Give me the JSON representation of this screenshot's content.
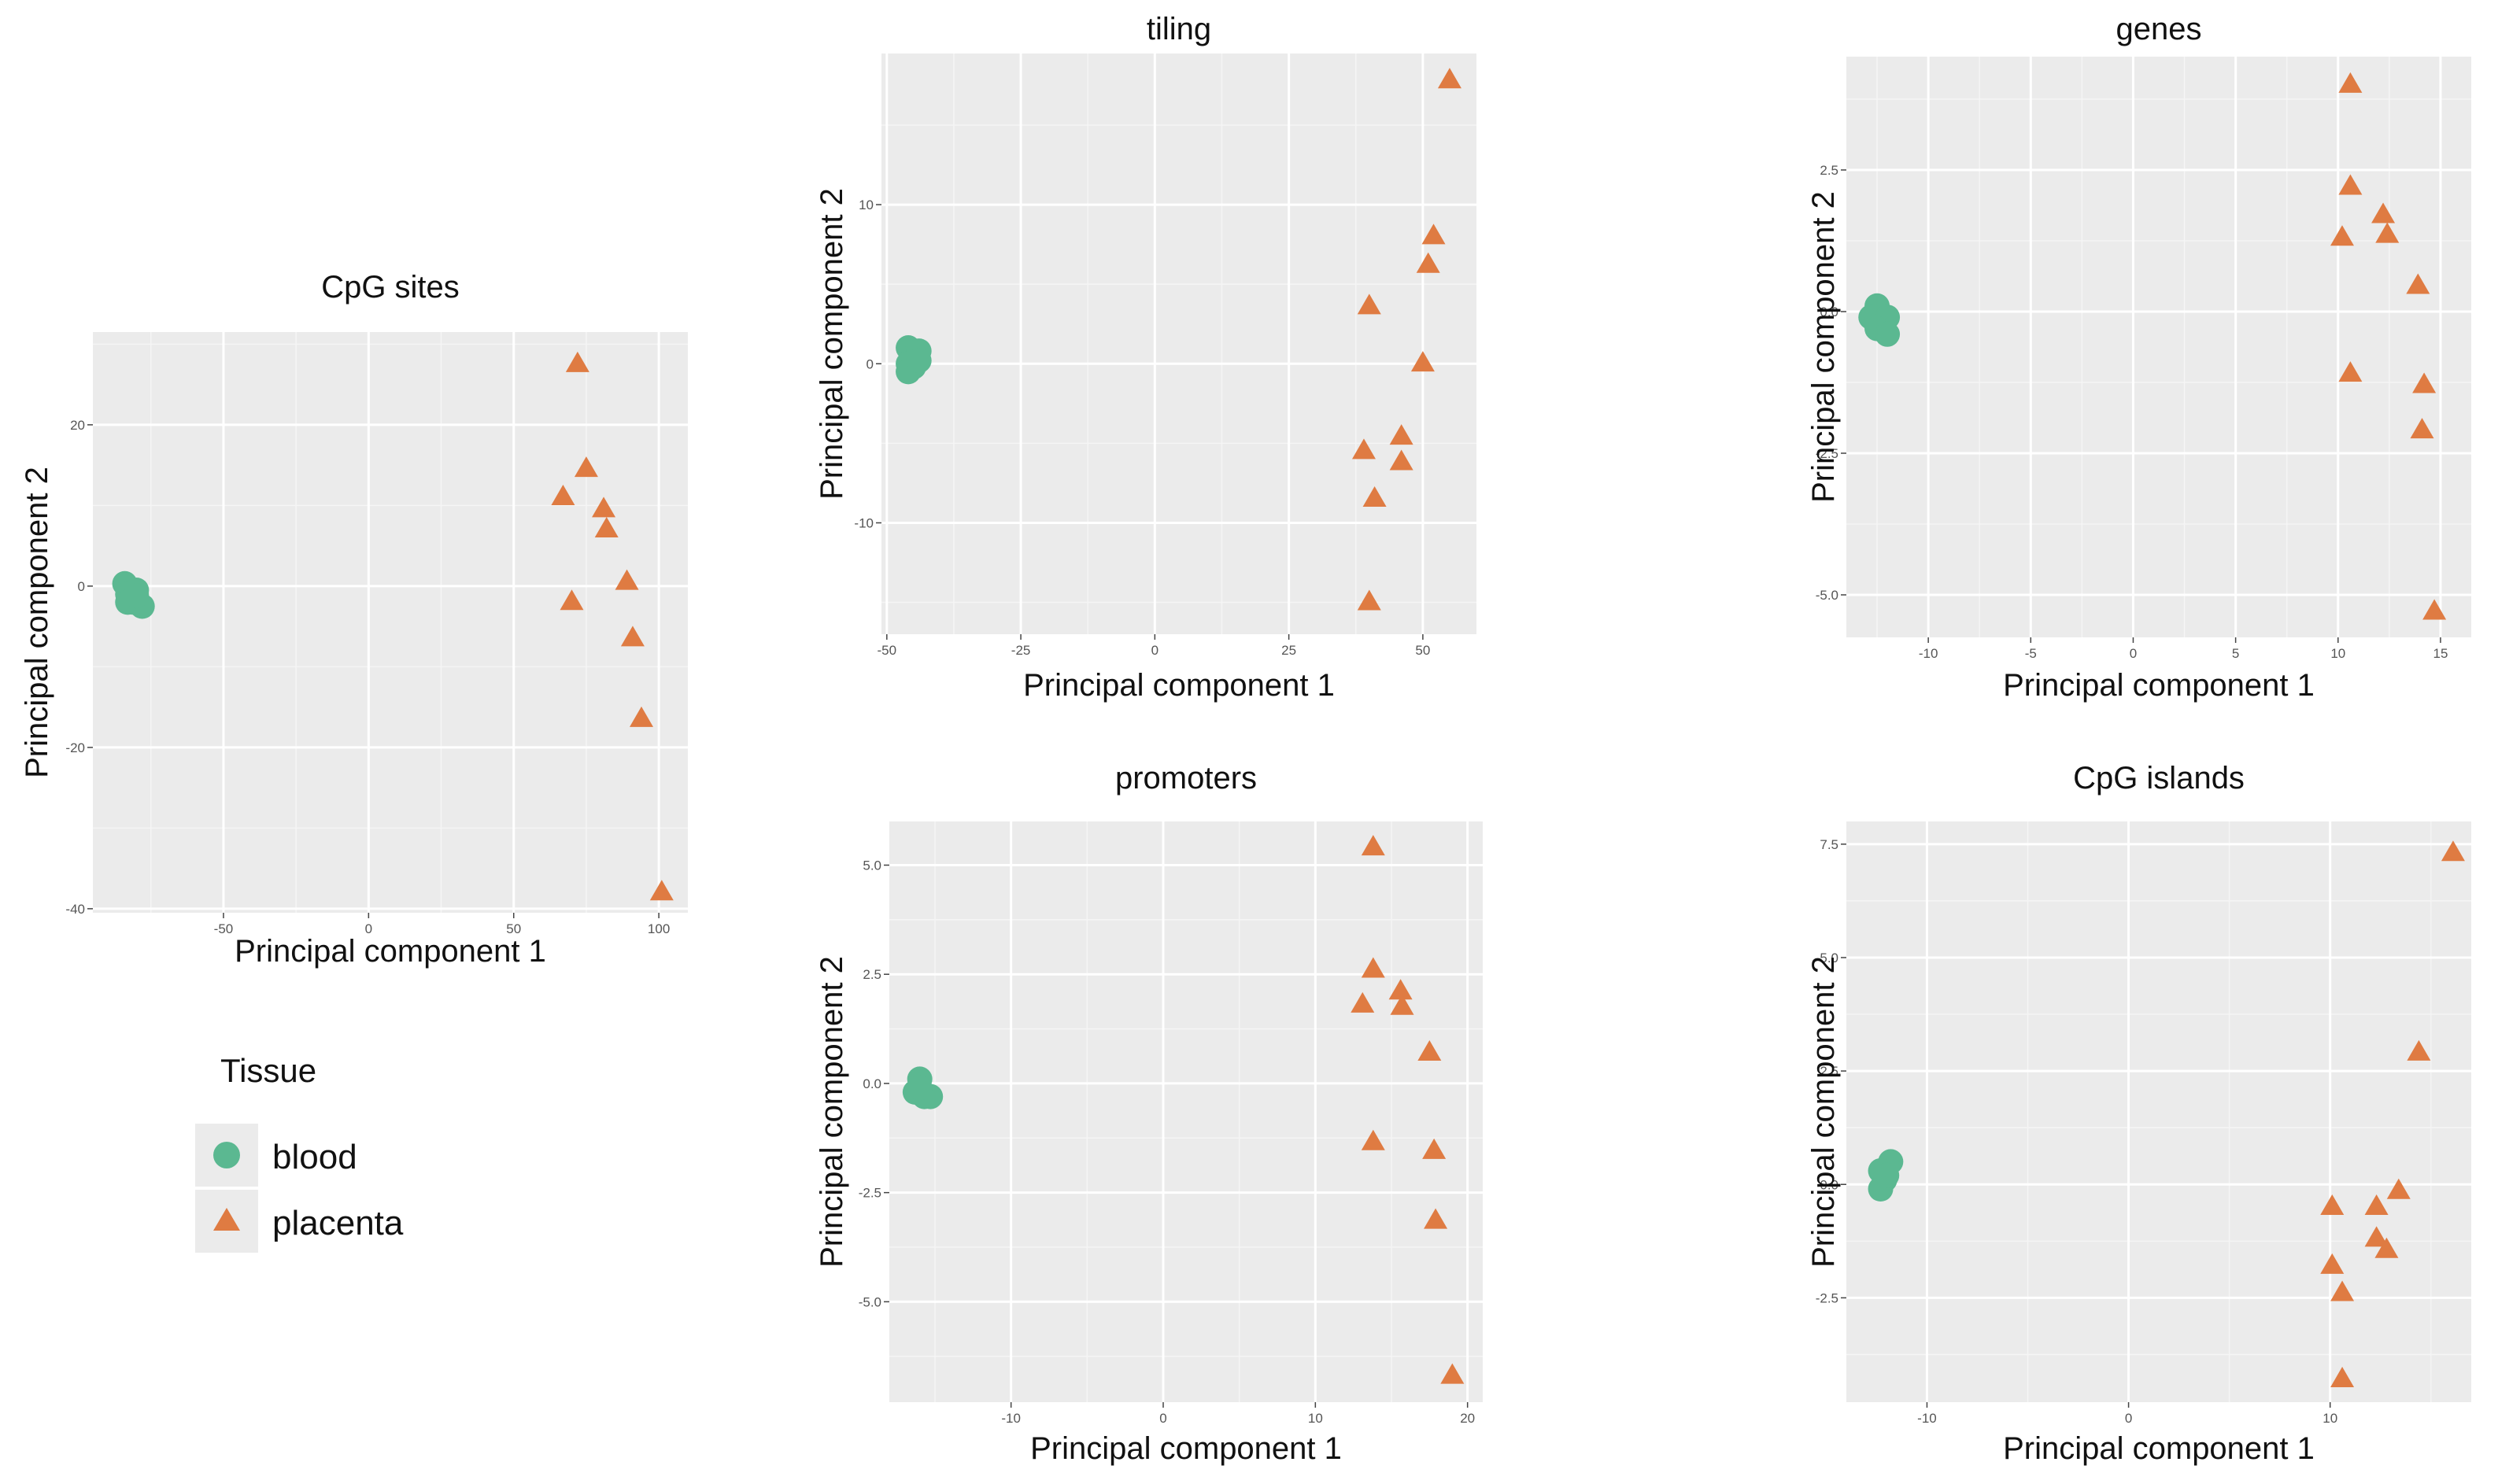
{
  "legend": {
    "title": "Tissue",
    "entries": [
      {
        "label": "blood",
        "color": "#5BB891",
        "shape": "circle"
      },
      {
        "label": "placenta",
        "color": "#DF7B42",
        "shape": "triangle"
      }
    ]
  },
  "chart_data": [
    {
      "id": "cpg-sites",
      "type": "scatter",
      "title": "CpG sites",
      "xlabel": "Principal component 1",
      "ylabel": "Principal component 2",
      "xlim": [
        -95,
        110
      ],
      "ylim": [
        -40.5,
        31.5
      ],
      "xticks": [
        -50,
        0,
        50,
        100
      ],
      "xticklabels": [
        "-50",
        "0",
        "50",
        "100"
      ],
      "yticks": [
        -40,
        -20,
        0,
        20
      ],
      "yticklabels": [
        "-40",
        "-20",
        "0",
        "20"
      ],
      "series": [
        {
          "name": "blood",
          "points": [
            [
              -84,
              0.3
            ],
            [
              -83,
              -1
            ],
            [
              -82,
              -1.5
            ],
            [
              -80,
              -0.5
            ],
            [
              -81,
              -2
            ],
            [
              -78,
              -2.5
            ],
            [
              -83,
              -2
            ],
            [
              -80,
              -1.2
            ]
          ]
        },
        {
          "name": "placenta",
          "points": [
            [
              72,
              27.5
            ],
            [
              75,
              14.5
            ],
            [
              67,
              11
            ],
            [
              81,
              9.5
            ],
            [
              82,
              7
            ],
            [
              70,
              -2
            ],
            [
              89,
              0.5
            ],
            [
              91,
              -6.5
            ],
            [
              94,
              -16.5
            ],
            [
              101,
              -38
            ]
          ]
        }
      ]
    },
    {
      "id": "tiling",
      "type": "scatter",
      "title": "tiling",
      "xlabel": "Principal component 1",
      "ylabel": "Principal component 2",
      "xlim": [
        -51,
        60
      ],
      "ylim": [
        -17,
        19.5
      ],
      "xticks": [
        -50,
        -25,
        0,
        25,
        50
      ],
      "xticklabels": [
        "-50",
        "-25",
        "0",
        "25",
        "50"
      ],
      "yticks": [
        -10,
        0,
        10
      ],
      "yticklabels": [
        "-10",
        "0",
        "10"
      ],
      "series": [
        {
          "name": "blood",
          "points": [
            [
              -46,
              1
            ],
            [
              -45,
              0.5
            ],
            [
              -46,
              0
            ],
            [
              -44,
              0.8
            ],
            [
              -45,
              -0.2
            ],
            [
              -46,
              -0.5
            ],
            [
              -44,
              0.2
            ]
          ]
        },
        {
          "name": "placenta",
          "points": [
            [
              55,
              17.8
            ],
            [
              52,
              8
            ],
            [
              51,
              6.2
            ],
            [
              40,
              3.6
            ],
            [
              50,
              0
            ],
            [
              46,
              -4.6
            ],
            [
              39,
              -5.5
            ],
            [
              46,
              -6.2
            ],
            [
              41,
              -8.5
            ],
            [
              40,
              -15
            ]
          ]
        }
      ]
    },
    {
      "id": "genes",
      "type": "scatter",
      "title": "genes",
      "xlabel": "Principal component 1",
      "ylabel": "Principal component 2",
      "xlim": [
        -14,
        16.5
      ],
      "ylim": [
        -5.75,
        4.5
      ],
      "xticks": [
        -10,
        -5,
        0,
        5,
        10,
        15
      ],
      "xticklabels": [
        "-10",
        "-5",
        "0",
        "5",
        "10",
        "15"
      ],
      "yticks": [
        -5,
        -2.5,
        0,
        2.5
      ],
      "yticklabels": [
        "-5.0",
        "-2.5",
        "0.0",
        "2.5"
      ],
      "series": [
        {
          "name": "blood",
          "points": [
            [
              -12.5,
              0.1
            ],
            [
              -12.8,
              -0.1
            ],
            [
              -12.3,
              -0.2
            ],
            [
              -12,
              -0.1
            ],
            [
              -12.5,
              -0.3
            ],
            [
              -12,
              -0.4
            ]
          ]
        },
        {
          "name": "placenta",
          "points": [
            [
              10.6,
              4
            ],
            [
              10.6,
              2.2
            ],
            [
              12.2,
              1.7
            ],
            [
              10.2,
              1.3
            ],
            [
              12.4,
              1.35
            ],
            [
              13.9,
              0.45
            ],
            [
              10.6,
              -1.1
            ],
            [
              14.2,
              -1.3
            ],
            [
              14.1,
              -2.1
            ],
            [
              14.7,
              -5.3
            ]
          ]
        }
      ]
    },
    {
      "id": "promoters",
      "type": "scatter",
      "title": "promoters",
      "xlabel": "Principal component 1",
      "ylabel": "Principal component 2",
      "xlim": [
        -18,
        21
      ],
      "ylim": [
        -7.3,
        6
      ],
      "xticks": [
        -10,
        0,
        10,
        20
      ],
      "xticklabels": [
        "-10",
        "0",
        "10",
        "20"
      ],
      "yticks": [
        -5,
        -2.5,
        0,
        2.5,
        5
      ],
      "yticklabels": [
        "-5.0",
        "-2.5",
        "0.0",
        "2.5",
        "5.0"
      ],
      "series": [
        {
          "name": "blood",
          "points": [
            [
              -16,
              0.1
            ],
            [
              -16.3,
              -0.2
            ],
            [
              -15.7,
              -0.3
            ],
            [
              -15.3,
              -0.3
            ],
            [
              -16,
              -0.1
            ]
          ]
        },
        {
          "name": "placenta",
          "points": [
            [
              13.8,
              5.4
            ],
            [
              13.8,
              2.6
            ],
            [
              15.6,
              2.1
            ],
            [
              13.1,
              1.8
            ],
            [
              15.7,
              1.75
            ],
            [
              17.5,
              0.7
            ],
            [
              13.8,
              -1.35
            ],
            [
              17.8,
              -1.55
            ],
            [
              17.9,
              -3.15
            ],
            [
              19,
              -6.7
            ]
          ]
        }
      ]
    },
    {
      "id": "cpg-islands",
      "type": "scatter",
      "title": "CpG islands",
      "xlabel": "Principal component 1",
      "ylabel": "Principal component 2",
      "xlim": [
        -14,
        17
      ],
      "ylim": [
        -4.8,
        8
      ],
      "xticks": [
        -10,
        0,
        10
      ],
      "xticklabels": [
        "-10",
        "0",
        "10"
      ],
      "yticks": [
        -2.5,
        0,
        2.5,
        5,
        7.5
      ],
      "yticklabels": [
        "-2.5",
        "0.0",
        "2.5",
        "5.0",
        "7.5"
      ],
      "series": [
        {
          "name": "blood",
          "points": [
            [
              -11.8,
              0.5
            ],
            [
              -12.3,
              0.3
            ],
            [
              -12.1,
              0.1
            ],
            [
              -12.3,
              -0.1
            ],
            [
              -12,
              0.2
            ]
          ]
        },
        {
          "name": "placenta",
          "points": [
            [
              16.1,
              7.3
            ],
            [
              14.4,
              2.9
            ],
            [
              13.4,
              -0.15
            ],
            [
              10.1,
              -0.5
            ],
            [
              12.3,
              -0.5
            ],
            [
              12.3,
              -1.2
            ],
            [
              12.8,
              -1.45
            ],
            [
              10.1,
              -1.8
            ],
            [
              10.6,
              -2.4
            ],
            [
              10.6,
              -4.3
            ]
          ]
        }
      ]
    }
  ]
}
